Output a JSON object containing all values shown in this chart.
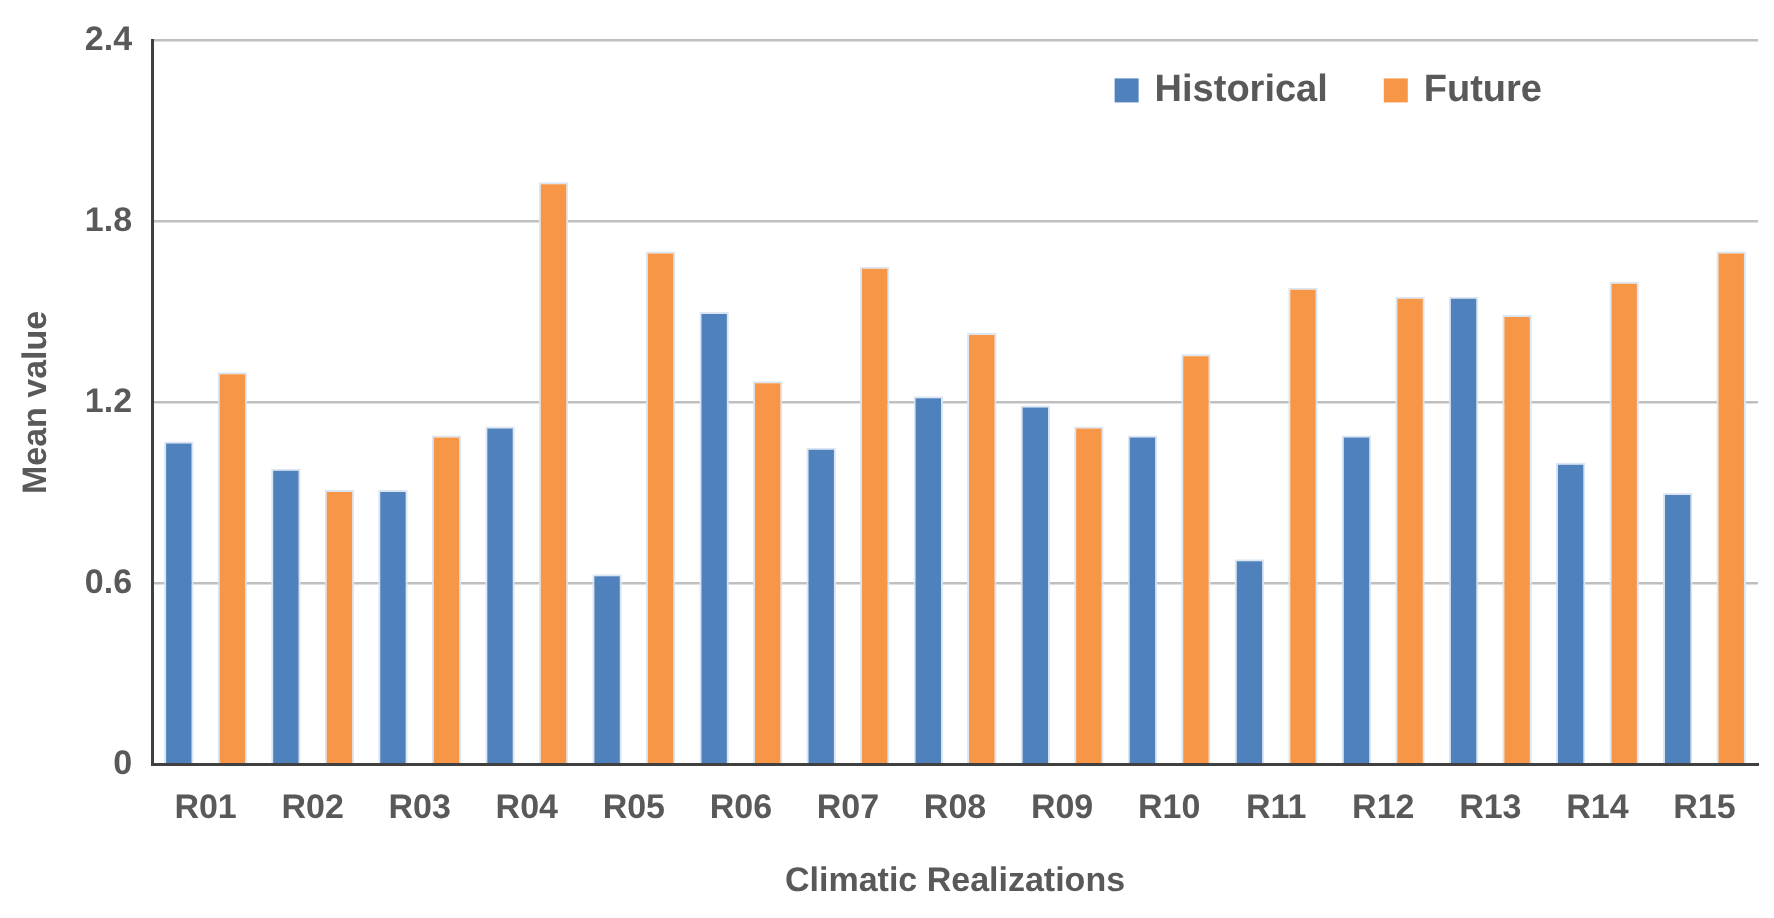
{
  "chart_data": {
    "type": "bar",
    "xlabel": "Climatic Realizations",
    "ylabel": "Mean value",
    "categories": [
      "R01",
      "R02",
      "R03",
      "R04",
      "R05",
      "R06",
      "R07",
      "R08",
      "R09",
      "R10",
      "R11",
      "R12",
      "R13",
      "R14",
      "R15"
    ],
    "series": [
      {
        "name": "Historical",
        "color": "#4f81bd",
        "values": [
          1.07,
          0.98,
          0.91,
          1.12,
          0.63,
          1.5,
          1.05,
          1.22,
          1.19,
          1.09,
          0.68,
          1.09,
          1.55,
          1.0,
          0.9
        ]
      },
      {
        "name": "Future",
        "color": "#f79646",
        "values": [
          1.3,
          0.91,
          1.09,
          1.93,
          1.7,
          1.27,
          1.65,
          1.43,
          1.12,
          1.36,
          1.58,
          1.55,
          1.49,
          1.6,
          1.7
        ]
      }
    ],
    "ylim": [
      0,
      2.4
    ],
    "yticks": [
      {
        "value": 0,
        "label": "0"
      },
      {
        "value": 0.6,
        "label": "0.6"
      },
      {
        "value": 1.2,
        "label": "1.2"
      },
      {
        "value": 1.8,
        "label": "1.8"
      },
      {
        "value": 2.4,
        "label": "2.4"
      }
    ],
    "grid": "y",
    "legend": "top right"
  }
}
